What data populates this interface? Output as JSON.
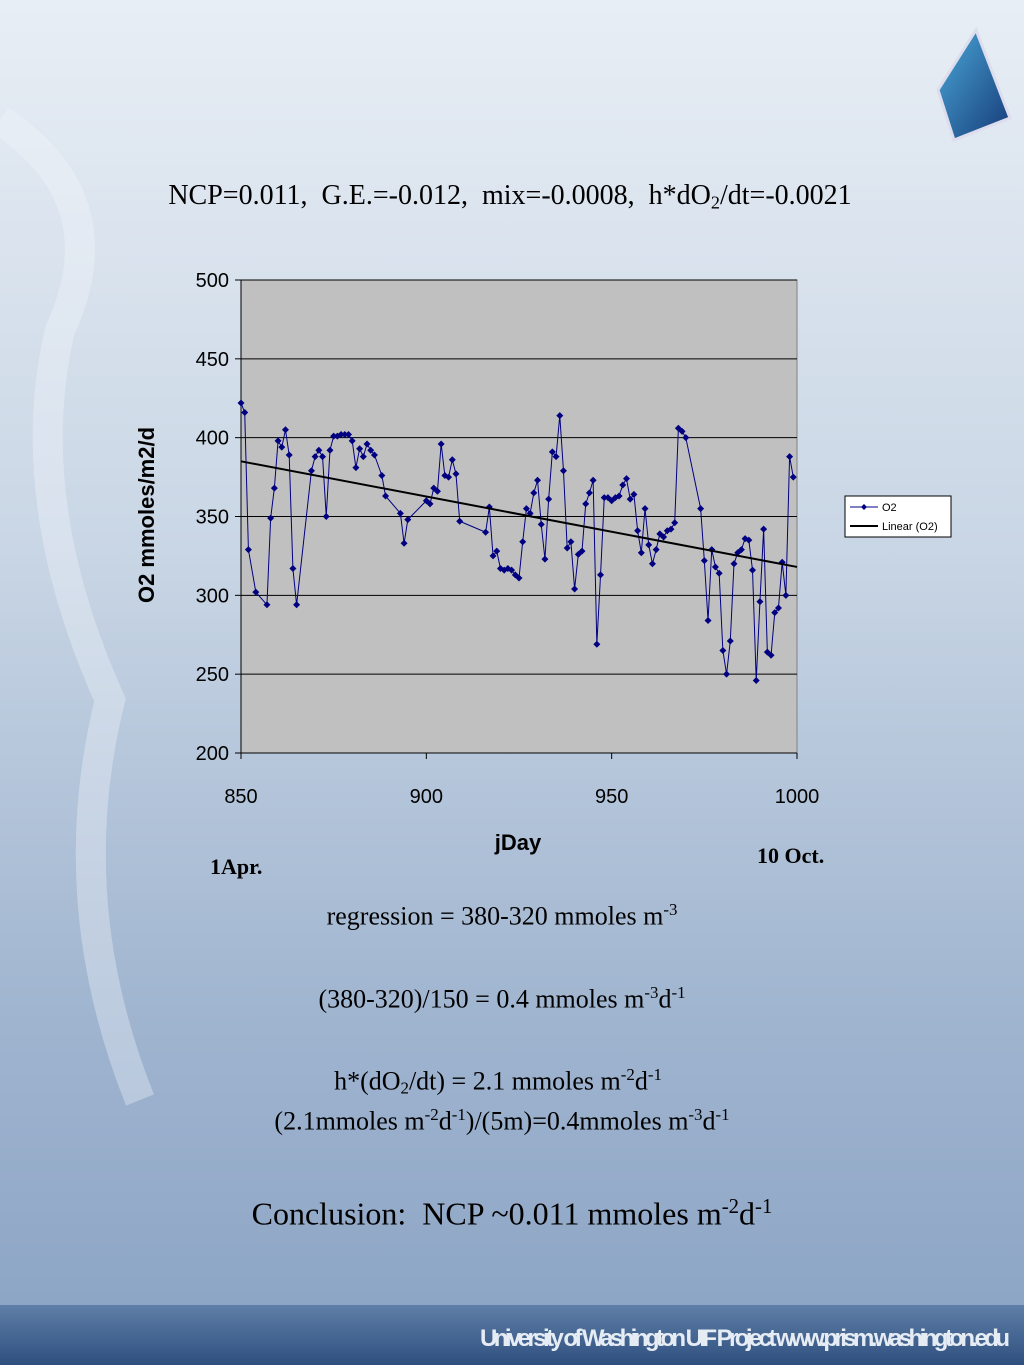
{
  "title": [
    {
      "t": "NCP=0.011,  G.E.=-0.012,  mix=-0.0008,  h*dO"
    },
    {
      "t": "2",
      "s": "sub"
    },
    {
      "t": "/dt=-0.0021"
    }
  ],
  "chart_data": {
    "type": "line",
    "xlabel": "jDay",
    "ylabel": "O2 mmoles/m2/d",
    "xlim": [
      850,
      1000
    ],
    "xticks": [
      850,
      900,
      950,
      1000
    ],
    "ylim": [
      200,
      500
    ],
    "yticks": [
      200,
      250,
      300,
      350,
      400,
      450,
      500
    ],
    "grid": true,
    "legend": "right",
    "annotations": [
      "1Apr.",
      "10 Oct."
    ],
    "series": [
      {
        "name": "O2",
        "color": "#000080",
        "marker": "diamond",
        "x": [
          850,
          851,
          852,
          854,
          857,
          858,
          859,
          860,
          861,
          862,
          863,
          864,
          865,
          869,
          870,
          871,
          872,
          873,
          874,
          875,
          876,
          877,
          878,
          879,
          880,
          881,
          882,
          883,
          884,
          885,
          886,
          888,
          889,
          893,
          894,
          895,
          900,
          901,
          902,
          903,
          904,
          905,
          906,
          907,
          908,
          909,
          916,
          917,
          918,
          919,
          920,
          921,
          922,
          923,
          924,
          925,
          926,
          927,
          928,
          929,
          930,
          931,
          932,
          933,
          934,
          935,
          936,
          937,
          938,
          939,
          940,
          941,
          942,
          943,
          944,
          945,
          946,
          947,
          948,
          949,
          950,
          951,
          952,
          953,
          954,
          955,
          956,
          957,
          958,
          959,
          960,
          961,
          962,
          963,
          964,
          965,
          966,
          967,
          968,
          969,
          970,
          974,
          975,
          976,
          977,
          978,
          979,
          980,
          981,
          982,
          983,
          984,
          985,
          986,
          987,
          988,
          989,
          990,
          991,
          992,
          993,
          994,
          995,
          996,
          997,
          998,
          999
        ],
        "values": [
          422,
          416,
          329,
          302,
          294,
          349,
          368,
          398,
          394,
          405,
          389,
          317,
          294,
          379,
          388,
          392,
          388,
          350,
          392,
          401,
          401,
          402,
          402,
          402,
          398,
          381,
          393,
          388,
          396,
          392,
          389,
          376,
          363,
          352,
          333,
          348,
          360,
          358,
          368,
          366,
          396,
          376,
          375,
          386,
          377,
          347,
          340,
          356,
          325,
          328,
          317,
          316,
          317,
          316,
          313,
          311,
          334,
          355,
          352,
          365,
          373,
          345,
          323,
          361,
          391,
          388,
          414,
          379,
          330,
          334,
          304,
          326,
          328,
          358,
          365,
          373,
          269,
          313,
          362,
          362,
          360,
          362,
          363,
          370,
          374,
          361,
          364,
          341,
          327,
          355,
          332,
          320,
          329,
          339,
          337,
          341,
          342,
          346,
          406,
          404,
          400,
          355,
          322,
          284,
          329,
          318,
          314,
          265,
          250,
          271,
          320,
          327,
          329,
          336,
          335,
          316,
          246,
          296,
          342,
          264,
          262,
          289,
          292,
          321,
          300,
          388,
          375
        ]
      },
      {
        "name": "Linear (O2)",
        "color": "#000000",
        "x": [
          850,
          1000
        ],
        "values": [
          385,
          318
        ]
      }
    ]
  },
  "notes": [
    [
      {
        "t": "regression = 380-320 mmoles m"
      },
      {
        "t": "-3",
        "s": "sup"
      }
    ],
    [
      {
        "t": "(380-320)/150 = 0.4 mmoles m"
      },
      {
        "t": "-3",
        "s": "sup"
      },
      {
        "t": "d"
      },
      {
        "t": "-1",
        "s": "sup"
      }
    ],
    [
      {
        "t": "h*(dO"
      },
      {
        "t": "2",
        "s": "sub"
      },
      {
        "t": "/dt) = 2.1 mmoles m"
      },
      {
        "t": "-2",
        "s": "sup"
      },
      {
        "t": "d"
      },
      {
        "t": "-1",
        "s": "sup"
      }
    ],
    [
      {
        "t": "(2.1mmoles m"
      },
      {
        "t": "-2",
        "s": "sup"
      },
      {
        "t": "d"
      },
      {
        "t": "-1",
        "s": "sup"
      },
      {
        "t": ")/(5m)=0.4mmoles m"
      },
      {
        "t": "-3",
        "s": "sup"
      },
      {
        "t": "d"
      },
      {
        "t": "-1",
        "s": "sup"
      }
    ],
    [
      {
        "t": "Conclusion:  NCP ~0.011 mmoles m"
      },
      {
        "t": "-2",
        "s": "sup"
      },
      {
        "t": "d"
      },
      {
        "t": "-1",
        "s": "sup"
      }
    ]
  ],
  "footer": "University of Washington  UIF Project  www.prism.washington.edu"
}
